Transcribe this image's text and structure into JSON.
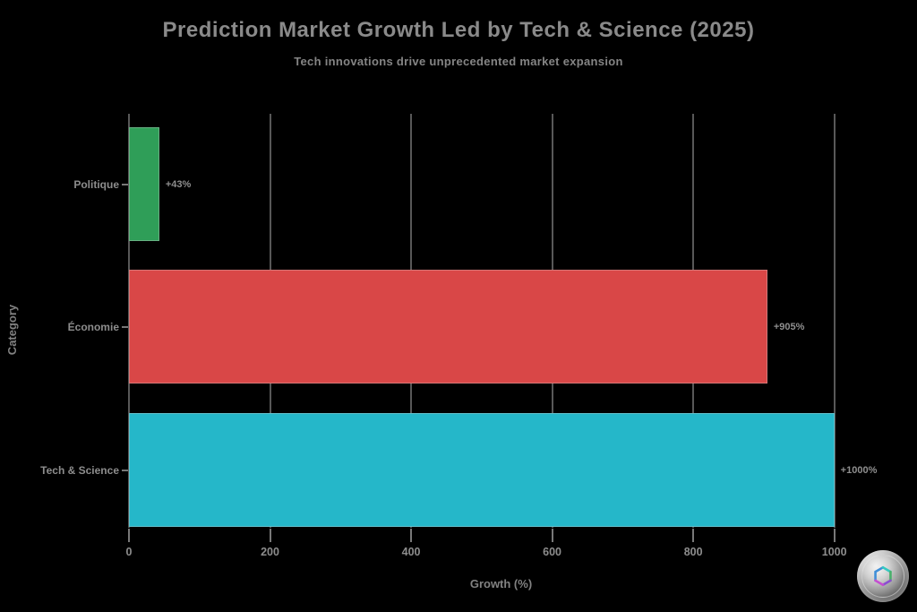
{
  "header": {
    "title": "Prediction Market Growth Led by Tech & Science (2025)",
    "subtitle": "Tech innovations drive unprecedented market expansion"
  },
  "chart_data": {
    "type": "bar",
    "orientation": "horizontal",
    "title": "Prediction Market Growth Led by Tech & Science (2025)",
    "subtitle": "Tech innovations drive unprecedented market expansion",
    "categories": [
      "Politique",
      "Économie",
      "Tech & Science"
    ],
    "values": [
      43,
      905,
      1000
    ],
    "value_labels": [
      "+43%",
      "+905%",
      "+1000%"
    ],
    "bar_colors": [
      "#2f9e58",
      "#d94747",
      "#25b7c9"
    ],
    "xlabel": "Growth (%)",
    "ylabel": "Category",
    "xlim": [
      0,
      1055
    ],
    "xticks": [
      0,
      200,
      400,
      600,
      800,
      1000
    ],
    "xtick_labels": [
      "0",
      "200",
      "400",
      "600",
      "800",
      "1000"
    ],
    "grid": true,
    "legend": "none",
    "background_color": "#000000",
    "grid_color": "#585858",
    "text_color": "#8d8d8d",
    "title_color": "#8a8a8a"
  },
  "icons": {
    "logo": "metallic-coin-logo"
  }
}
